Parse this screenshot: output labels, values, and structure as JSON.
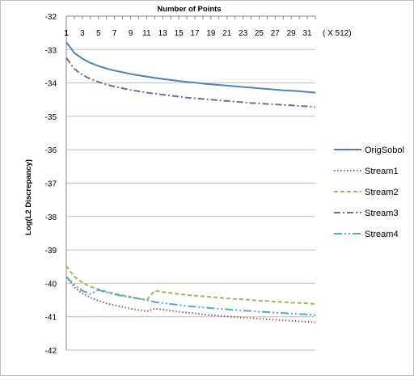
{
  "chart_data": {
    "type": "line",
    "title": "",
    "xlabel": "Number of Points",
    "x_unit_note": "( X 512)",
    "ylabel": "Log(L2 Discrepancy)",
    "x_axis_position": "top",
    "x_ticks": [
      "1",
      "3",
      "5",
      "7",
      "9",
      "11",
      "13",
      "15",
      "17",
      "19",
      "21",
      "23",
      "25",
      "27",
      "29",
      "31"
    ],
    "y_ticks": [
      "-32",
      "-33",
      "-34",
      "-35",
      "-36",
      "-37",
      "-38",
      "-39",
      "-40",
      "-41",
      "-42"
    ],
    "xlim": [
      1,
      32
    ],
    "ylim": [
      -42,
      -32
    ],
    "grid": "horizontal",
    "legend_position": "right",
    "x": [
      1,
      2,
      3,
      4,
      5,
      6,
      7,
      8,
      9,
      10,
      11,
      12,
      13,
      14,
      15,
      16,
      17,
      18,
      19,
      20,
      21,
      22,
      23,
      24,
      25,
      26,
      27,
      28,
      29,
      30,
      31,
      32
    ],
    "series": [
      {
        "name": "OrigSobol",
        "color": "#4f81bd",
        "dash": "solid",
        "values": [
          -32.78,
          -33.1,
          -33.27,
          -33.4,
          -33.49,
          -33.57,
          -33.63,
          -33.68,
          -33.73,
          -33.77,
          -33.81,
          -33.85,
          -33.88,
          -33.91,
          -33.94,
          -33.97,
          -33.99,
          -34.02,
          -34.04,
          -34.06,
          -34.08,
          -34.1,
          -34.12,
          -34.14,
          -34.16,
          -34.18,
          -34.2,
          -34.22,
          -34.23,
          -34.25,
          -34.27,
          -34.29
        ]
      },
      {
        "name": "Stream1",
        "color": "#c0504d",
        "dash": "dotted",
        "values": [
          -39.82,
          -40.12,
          -40.3,
          -40.43,
          -40.52,
          -40.6,
          -40.66,
          -40.71,
          -40.76,
          -40.8,
          -40.84,
          -40.76,
          -40.79,
          -40.82,
          -40.85,
          -40.88,
          -40.9,
          -40.93,
          -40.95,
          -40.97,
          -40.99,
          -41.01,
          -41.03,
          -41.04,
          -41.06,
          -41.08,
          -41.09,
          -41.11,
          -41.12,
          -41.14,
          -41.15,
          -41.17
        ]
      },
      {
        "name": "Stream2",
        "color": "#9bbb59",
        "dash": "dashed",
        "values": [
          -39.48,
          -39.8,
          -39.98,
          -40.1,
          -40.18,
          -40.25,
          -40.31,
          -40.36,
          -40.41,
          -40.46,
          -40.5,
          -40.22,
          -40.26,
          -40.29,
          -40.32,
          -40.35,
          -40.37,
          -40.39,
          -40.41,
          -40.43,
          -40.45,
          -40.47,
          -40.48,
          -40.5,
          -40.52,
          -40.53,
          -40.55,
          -40.56,
          -40.58,
          -40.59,
          -40.6,
          -40.62
        ]
      },
      {
        "name": "Stream3",
        "color": "#8064a2",
        "dash": "dashdot",
        "values": [
          -33.25,
          -33.58,
          -33.76,
          -33.88,
          -33.97,
          -34.05,
          -34.11,
          -34.16,
          -34.21,
          -34.25,
          -34.29,
          -34.32,
          -34.35,
          -34.38,
          -34.41,
          -34.44,
          -34.46,
          -34.48,
          -34.5,
          -34.52,
          -34.54,
          -34.56,
          -34.58,
          -34.6,
          -34.61,
          -34.63,
          -34.64,
          -34.66,
          -34.67,
          -34.69,
          -34.7,
          -34.72
        ]
      },
      {
        "name": "Stream4",
        "color": "#4bacc6",
        "dash": "longdashdotdot",
        "values": [
          -39.8,
          -40.05,
          -40.22,
          -40.32,
          -40.2,
          -40.27,
          -40.33,
          -40.38,
          -40.42,
          -40.46,
          -40.5,
          -40.56,
          -40.59,
          -40.62,
          -40.65,
          -40.68,
          -40.7,
          -40.72,
          -40.74,
          -40.76,
          -40.78,
          -40.8,
          -40.82,
          -40.83,
          -40.85,
          -40.86,
          -40.88,
          -40.89,
          -40.91,
          -40.92,
          -40.93,
          -40.95
        ]
      }
    ]
  }
}
